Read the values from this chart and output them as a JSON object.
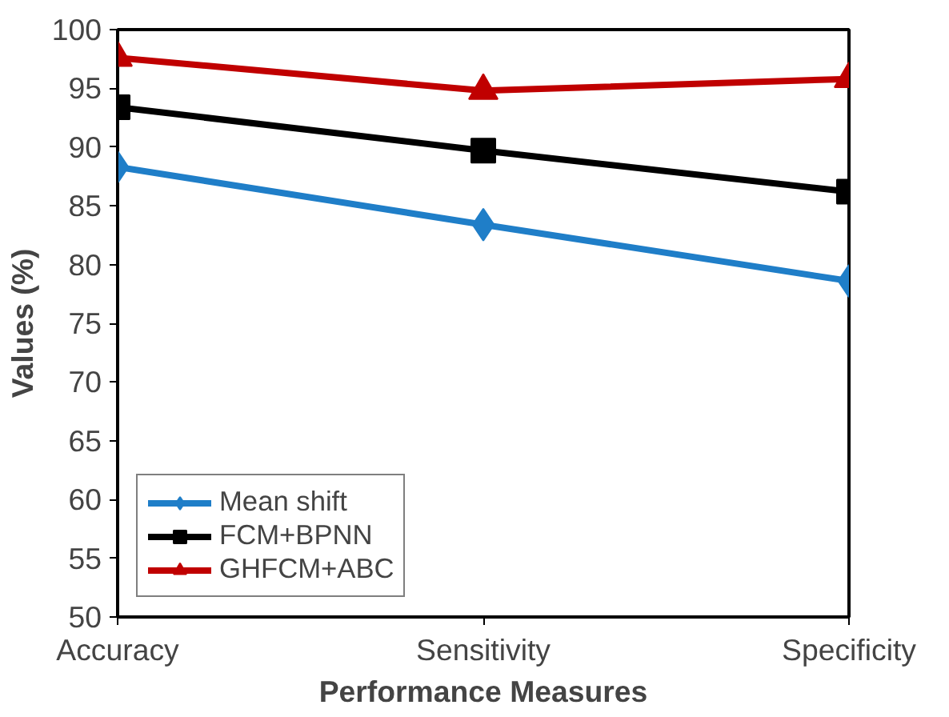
{
  "chart_data": {
    "type": "line",
    "xlabel": "Performance Measures",
    "ylabel": "Values (%)",
    "categories": [
      "Accuracy",
      "Sensitivity",
      "Specificity"
    ],
    "series": [
      {
        "name": "Mean shift",
        "color": "#1f7ec8",
        "marker": "diamond",
        "values": [
          88.3,
          83.4,
          78.6
        ]
      },
      {
        "name": "FCM+BPNN",
        "color": "#000000",
        "marker": "square",
        "values": [
          93.4,
          89.7,
          86.2
        ]
      },
      {
        "name": "GHFCM+ABC",
        "color": "#c00000",
        "marker": "triangle",
        "values": [
          97.6,
          94.8,
          95.8
        ]
      }
    ],
    "ylim": [
      50,
      100
    ],
    "yticks": [
      50,
      55,
      60,
      65,
      70,
      75,
      80,
      85,
      90,
      95,
      100
    ],
    "grid": false,
    "legend": "bottom left",
    "line_style": "solid"
  }
}
